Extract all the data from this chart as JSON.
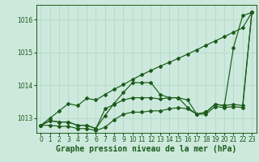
{
  "background_color": "#cde8dc",
  "line_color": "#1a5c1a",
  "grid_color": "#b0d8c8",
  "xlabel": "Graphe pression niveau de la mer (hPa)",
  "xlabel_fontsize": 7,
  "tick_fontsize": 5.5,
  "ylim": [
    1012.55,
    1016.45
  ],
  "xlim": [
    -0.5,
    23.5
  ],
  "yticks": [
    1013,
    1014,
    1015,
    1016
  ],
  "xticks": [
    0,
    1,
    2,
    3,
    4,
    5,
    6,
    7,
    8,
    9,
    10,
    11,
    12,
    13,
    14,
    15,
    16,
    17,
    18,
    19,
    20,
    21,
    22,
    23
  ],
  "line1": [
    1012.78,
    1012.92,
    1012.88,
    1012.88,
    1012.78,
    1012.78,
    1012.68,
    1013.08,
    1013.45,
    1013.78,
    1014.08,
    1014.08,
    1014.08,
    1013.72,
    1013.62,
    1013.62,
    1013.32,
    1013.12,
    1013.18,
    1013.42,
    1013.38,
    1015.15,
    1016.12,
    1016.22
  ],
  "line2": [
    1012.78,
    1012.92,
    1012.88,
    1012.88,
    1012.78,
    1012.78,
    1012.68,
    1013.28,
    1013.42,
    1013.55,
    1013.62,
    1013.62,
    1013.62,
    1013.58,
    1013.62,
    1013.62,
    1013.55,
    1013.12,
    1013.18,
    1013.42,
    1013.38,
    1013.42,
    1013.38,
    1016.22
  ],
  "line3": [
    1012.78,
    1012.78,
    1012.75,
    1012.75,
    1012.68,
    1012.68,
    1012.62,
    1012.72,
    1012.95,
    1013.12,
    1013.18,
    1013.18,
    1013.22,
    1013.22,
    1013.28,
    1013.32,
    1013.28,
    1013.12,
    1013.12,
    1013.35,
    1013.32,
    1013.35,
    1013.32,
    1016.22
  ],
  "line4_straight": [
    1012.78,
    1013.0,
    1013.22,
    1013.44,
    1013.38,
    1013.6,
    1013.55,
    1013.72,
    1013.88,
    1014.02,
    1014.18,
    1014.32,
    1014.45,
    1014.58,
    1014.7,
    1014.82,
    1014.95,
    1015.08,
    1015.22,
    1015.35,
    1015.48,
    1015.62,
    1015.75,
    1016.22
  ]
}
